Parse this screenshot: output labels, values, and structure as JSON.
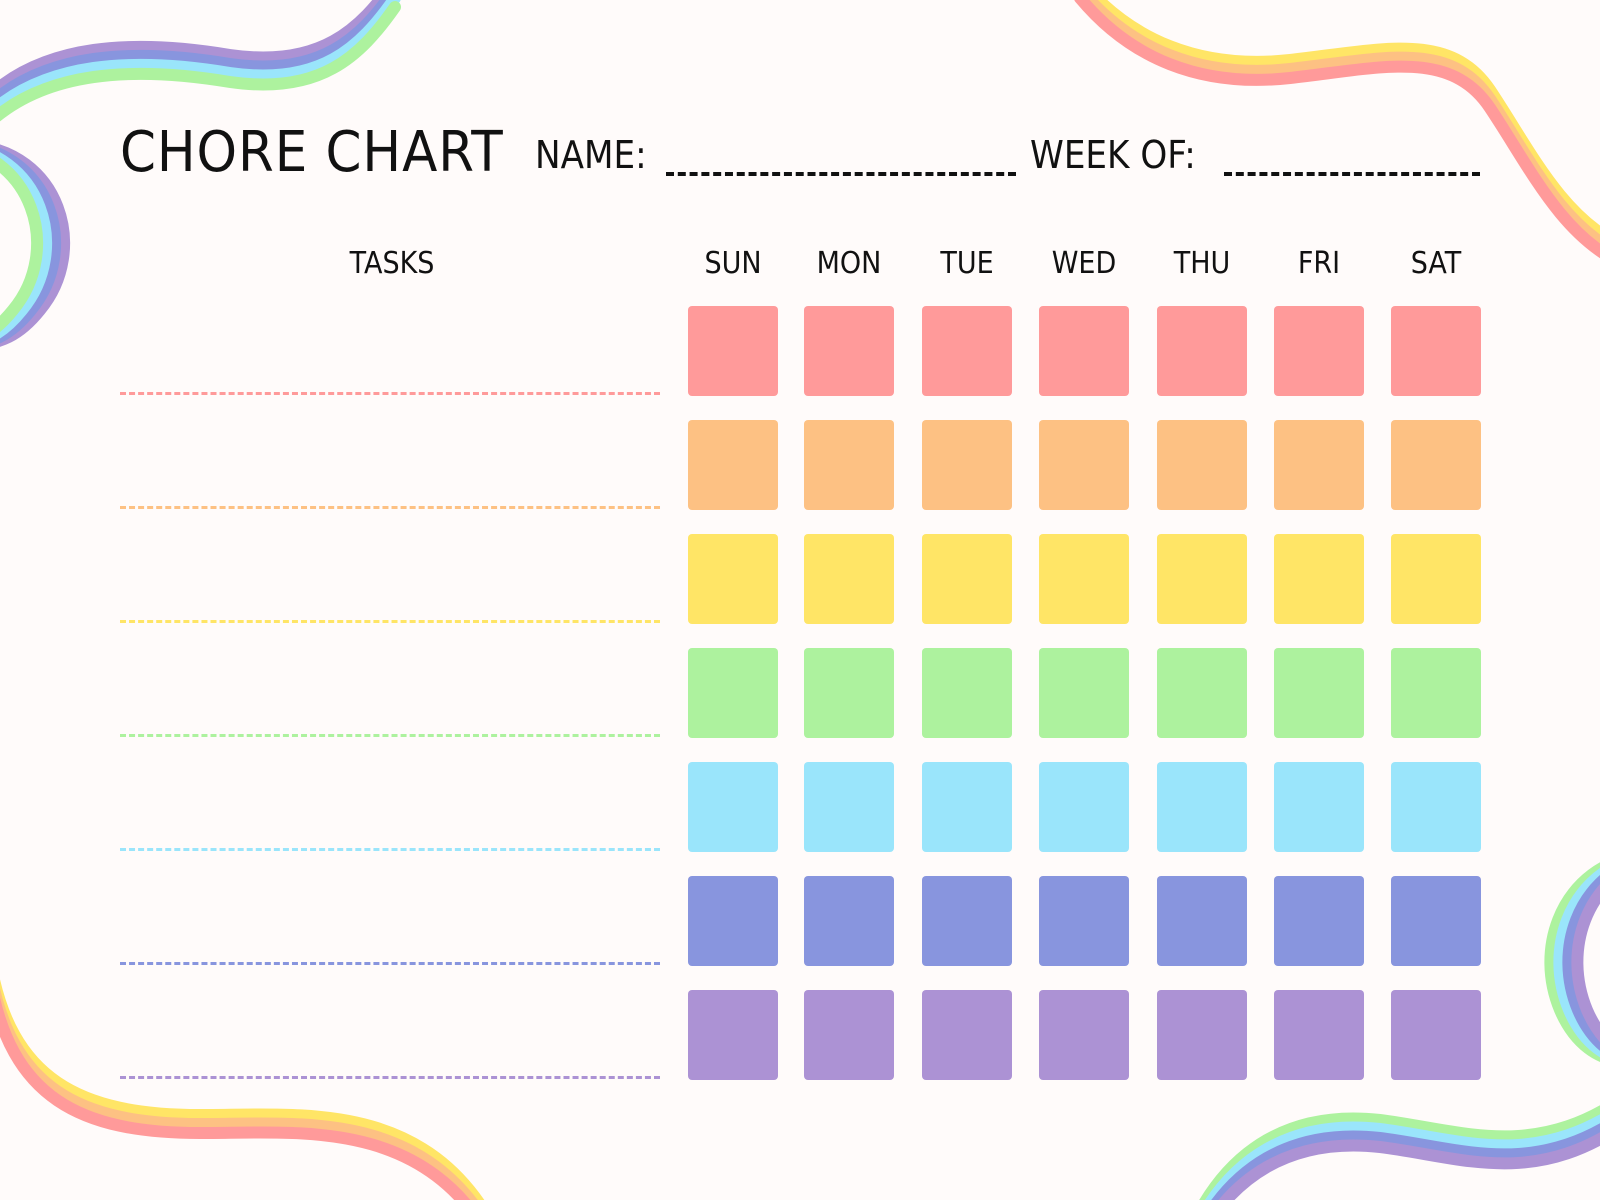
{
  "header": {
    "title": "CHORE CHART",
    "name_label": "NAME:",
    "week_label": "WEEK OF:"
  },
  "tasks_label": "TASKS",
  "days": [
    "SUN",
    "MON",
    "TUE",
    "WED",
    "THU",
    "FRI",
    "SAT"
  ],
  "row_colors": [
    "#FF9A9A",
    "#FDC183",
    "#FFE566",
    "#ADF29E",
    "#9AE5FB",
    "#8895DE",
    "#AC92D4"
  ],
  "background": "#FFFBFA"
}
